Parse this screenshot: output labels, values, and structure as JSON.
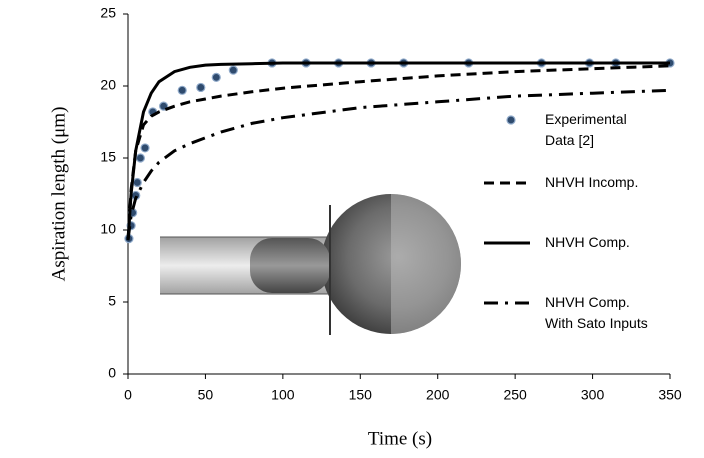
{
  "chart_data": {
    "type": "line",
    "x_label": "Time (s)",
    "y_label": "Aspiration length (μm)",
    "xlim": [
      0,
      350
    ],
    "xticks": [
      0,
      50,
      100,
      150,
      200,
      250,
      300,
      350
    ],
    "ylim": [
      0,
      25
    ],
    "yticks": [
      0,
      5,
      10,
      15,
      20,
      25
    ],
    "grid": false,
    "series": [
      {
        "name": "Experimental Data [2]",
        "style": "markers",
        "color": "#2f4b6e",
        "x": [
          0.6,
          2,
          3,
          5,
          6,
          8,
          11,
          16,
          23,
          35,
          47,
          57,
          68,
          93,
          115,
          136,
          157,
          178,
          220,
          267,
          298,
          315,
          350
        ],
        "values": [
          9.4,
          10.3,
          11.2,
          12.4,
          13.3,
          15.0,
          15.7,
          18.2,
          18.6,
          19.7,
          19.9,
          20.6,
          21.1,
          21.6,
          21.6,
          21.6,
          21.6,
          21.6,
          21.6,
          21.6,
          21.6,
          21.6,
          21.6
        ]
      },
      {
        "name": "NHVH Incomp.",
        "style": "dashed",
        "color": "#000000",
        "x": [
          0,
          2,
          5,
          10,
          15,
          20,
          30,
          40,
          50,
          60,
          80,
          100,
          150,
          200,
          250,
          300,
          350
        ],
        "values": [
          9.3,
          12.8,
          15.5,
          17.3,
          17.9,
          18.2,
          18.6,
          18.9,
          19.1,
          19.3,
          19.6,
          19.85,
          20.3,
          20.7,
          21.0,
          21.2,
          21.4
        ]
      },
      {
        "name": "NHVH Comp.",
        "style": "solid",
        "color": "#000000",
        "x": [
          0,
          2,
          5,
          10,
          15,
          20,
          30,
          40,
          50,
          60,
          80,
          100,
          150,
          200,
          250,
          300,
          350
        ],
        "values": [
          9.3,
          12.5,
          15.5,
          18.2,
          19.5,
          20.3,
          21.0,
          21.3,
          21.45,
          21.5,
          21.55,
          21.6,
          21.6,
          21.6,
          21.6,
          21.6,
          21.6
        ]
      },
      {
        "name": "NHVH Comp. With Sato Inputs",
        "style": "dashdot",
        "color": "#000000",
        "x": [
          0,
          2,
          5,
          10,
          15,
          20,
          30,
          40,
          50,
          60,
          80,
          100,
          150,
          200,
          250,
          300,
          350
        ],
        "values": [
          9.3,
          11.0,
          12.2,
          13.3,
          14.1,
          14.7,
          15.5,
          16.0,
          16.4,
          16.8,
          17.4,
          17.8,
          18.5,
          18.9,
          19.3,
          19.5,
          19.7
        ]
      }
    ]
  }
}
